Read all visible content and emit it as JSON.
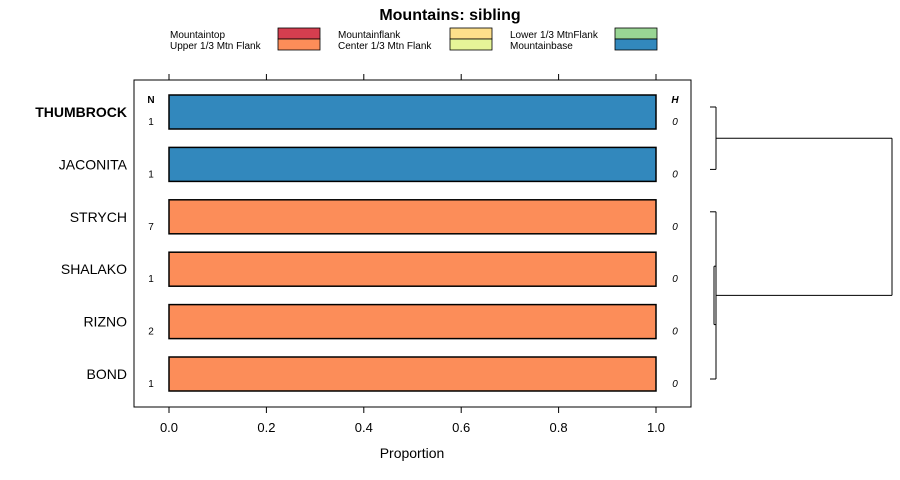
{
  "chart_data": {
    "type": "bar",
    "orientation": "horizontal",
    "stacked": true,
    "title": "Mountains: sibling",
    "xlabel": "Proportion",
    "xlim": [
      -0.07,
      1.07
    ],
    "xticks": [
      0.0,
      0.2,
      0.4,
      0.6,
      0.8,
      1.0
    ],
    "xtick_labels": [
      "0.0",
      "0.2",
      "0.4",
      "0.6",
      "0.8",
      "1.0"
    ],
    "n_header": "N",
    "h_header": "H",
    "legend": [
      {
        "label": "Mountaintop",
        "color": "#d53e4f"
      },
      {
        "label": "Upper 1/3 Mtn Flank",
        "color": "#fc8d59"
      },
      {
        "label": "Mountainflank",
        "color": "#fee08b"
      },
      {
        "label": "Center 1/3 Mtn Flank",
        "color": "#e6f598"
      },
      {
        "label": "Lower 1/3 MtnFlank",
        "color": "#99d594"
      },
      {
        "label": "Mountainbase",
        "color": "#3288bd"
      }
    ],
    "categories": [
      "THUMBROCK",
      "JACONITA",
      "STRYCH",
      "SHALAKO",
      "RIZNO",
      "BOND"
    ],
    "highlighted_category": "THUMBROCK",
    "n": [
      "1",
      "1",
      "7",
      "1",
      "2",
      "1"
    ],
    "h": [
      "0",
      "0",
      "0",
      "0",
      "0",
      "0"
    ],
    "series": [
      {
        "name": "Mountaintop",
        "values": [
          0,
          0,
          0,
          0,
          0,
          0
        ]
      },
      {
        "name": "Upper 1/3 Mtn Flank",
        "values": [
          0,
          0,
          1,
          1,
          1,
          1
        ]
      },
      {
        "name": "Mountainflank",
        "values": [
          0,
          0,
          0,
          0,
          0,
          0
        ]
      },
      {
        "name": "Center 1/3 Mtn Flank",
        "values": [
          0,
          0,
          0,
          0,
          0,
          0
        ]
      },
      {
        "name": "Lower 1/3 MtnFlank",
        "values": [
          0,
          0,
          0,
          0,
          0,
          0
        ]
      },
      {
        "name": "Mountainbase",
        "values": [
          1,
          1,
          0,
          0,
          0,
          0
        ]
      }
    ],
    "dendrogram": {
      "groups": [
        [
          "THUMBROCK",
          "JACONITA"
        ],
        [
          "STRYCH",
          "SHALAKO",
          "RIZNO",
          "BOND"
        ]
      ]
    }
  }
}
